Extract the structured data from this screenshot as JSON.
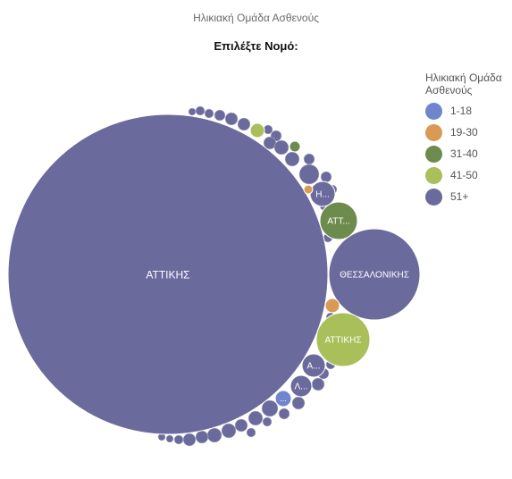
{
  "title": "Ηλικιακή Ομάδα Ασθενούς",
  "subtitle": "Επιλέξτε Νομό:",
  "legend": {
    "title": "Ηλικιακή Ομάδα Ασθενούς",
    "items": [
      {
        "label": "1-18",
        "color": "#6f86cf"
      },
      {
        "label": "19-30",
        "color": "#d89a55"
      },
      {
        "label": "31-40",
        "color": "#6e8b4e"
      },
      {
        "label": "41-50",
        "color": "#a9bf5a"
      },
      {
        "label": "51+",
        "color": "#6b6a9c"
      }
    ]
  },
  "chart_data": {
    "type": "bubble",
    "title": "Ηλικιακή Ομάδα Ασθενούς",
    "subtitle": "Επιλέξτε Νομό:",
    "series_order": [
      "1-18",
      "19-30",
      "31-40",
      "41-50",
      "51+"
    ],
    "bubbles": [
      {
        "label": "ΑΤΤΙΚΗΣ",
        "group": "51+"
      },
      {
        "label": "ΘΕΣΣΑΛΟΝΙΚΗΣ",
        "group": "51+"
      },
      {
        "label": "ΑΤΤΙΚΗΣ",
        "group": "41-50"
      },
      {
        "label": "ΑΤΤ...",
        "group": "31-40"
      },
      {
        "label": "Η...",
        "group": "51+"
      },
      {
        "label": "Α...",
        "group": "51+"
      },
      {
        "label": "Λ...",
        "group": "51+"
      },
      {
        "label": "...",
        "group": "1-18"
      },
      {
        "label": "",
        "group": "19-30"
      },
      {
        "label": "",
        "group": "19-30"
      },
      {
        "label": "",
        "group": "41-50"
      },
      {
        "label": "",
        "group": "31-40"
      }
    ]
  }
}
